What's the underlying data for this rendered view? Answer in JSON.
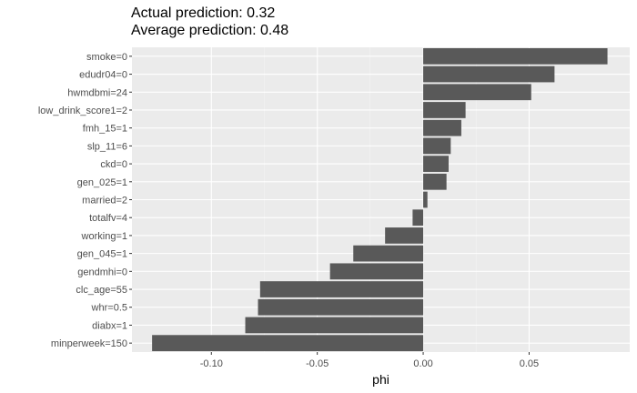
{
  "chart_data": {
    "type": "bar",
    "orientation": "horizontal",
    "title_lines": [
      "Actual prediction: 0.32",
      "Average prediction: 0.48"
    ],
    "xlabel": "phi",
    "ylabel": "",
    "xlim": [
      -0.1375,
      0.0975
    ],
    "x_ticks": [
      -0.1,
      -0.05,
      0.0,
      0.05
    ],
    "x_tick_labels": [
      "-0.10",
      "-0.05",
      "0.00",
      "0.05"
    ],
    "grid": true,
    "categories": [
      "smoke=0",
      "edudr04=0",
      "hwmdbmi=24",
      "low_drink_score1=2",
      "fmh_15=1",
      "slp_11=6",
      "ckd=0",
      "gen_025=1",
      "married=2",
      "totalfv=4",
      "working=1",
      "gen_045=1",
      "gendmhi=0",
      "clc_age=55",
      "whr=0.5",
      "diabx=1",
      "minperweek=150"
    ],
    "values": [
      0.087,
      0.062,
      0.051,
      0.02,
      0.018,
      0.013,
      0.012,
      0.011,
      0.002,
      -0.005,
      -0.018,
      -0.033,
      -0.044,
      -0.077,
      -0.078,
      -0.084,
      -0.128
    ],
    "colors": {
      "bar": "#595959",
      "panel": "#ebebeb",
      "grid_major": "#ffffff",
      "axis_text": "#4d4d4d",
      "title_text": "#000000"
    }
  }
}
